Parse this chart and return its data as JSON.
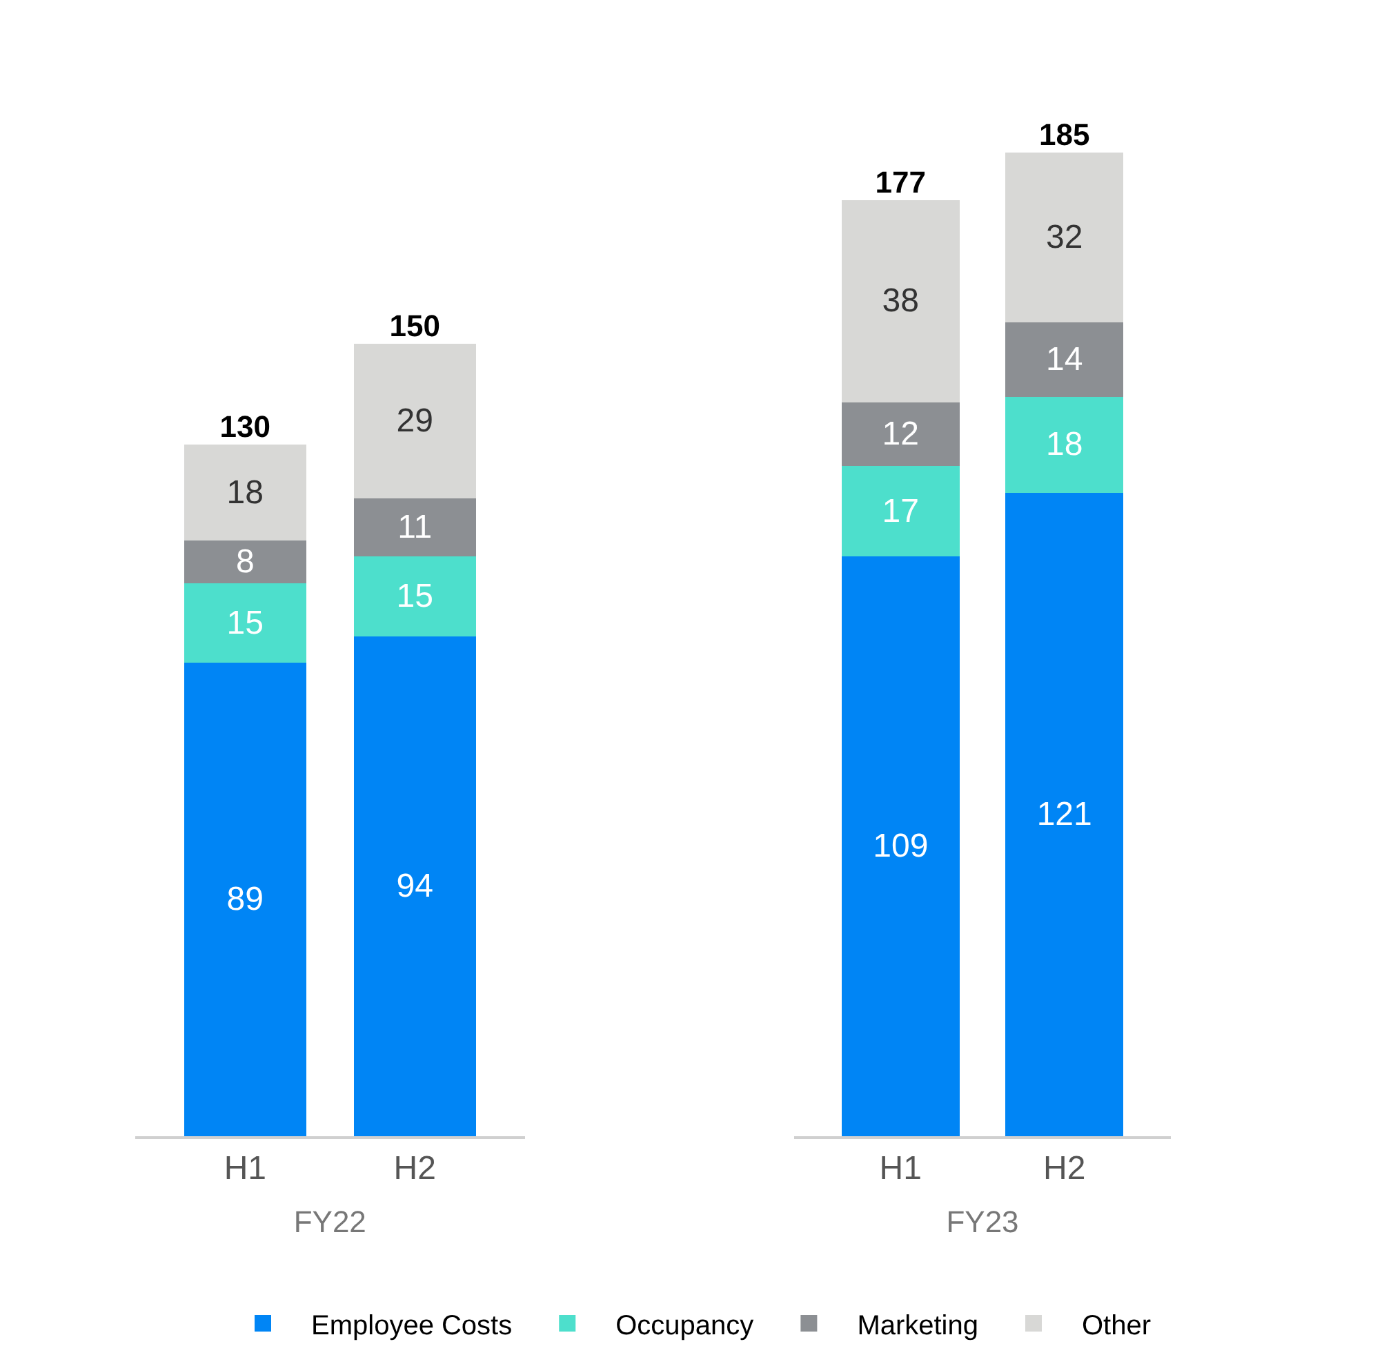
{
  "chart_data": [
    {
      "type": "bar",
      "stacked": true,
      "xlabel": "FY22",
      "categories": [
        "H1",
        "H2"
      ],
      "data_labels": true,
      "legend": "bottom",
      "totals": [
        "130",
        "150"
      ],
      "series": [
        {
          "name": "Employee Costs",
          "color": "#0085f5",
          "values": [
            89,
            94
          ]
        },
        {
          "name": "Occupancy",
          "color": "#4ddfcc",
          "values": [
            15,
            15
          ]
        },
        {
          "name": "Marketing",
          "color": "#8c8f93",
          "values": [
            8,
            11
          ]
        },
        {
          "name": "Other",
          "color": "#d8d8d6",
          "values": [
            18,
            29
          ]
        }
      ]
    },
    {
      "type": "bar",
      "stacked": true,
      "xlabel": "FY23",
      "categories": [
        "H1",
        "H2"
      ],
      "data_labels": true,
      "totals": [
        "177",
        "185"
      ],
      "series": [
        {
          "color": "#0085f5",
          "values": [
            109,
            121
          ]
        },
        {
          "color": "#4ddfcc",
          "values": [
            17,
            18
          ]
        },
        {
          "color": "#8c8f93",
          "values": [
            12,
            14
          ]
        },
        {
          "color": "#d8d8d6",
          "values": [
            38,
            32
          ]
        }
      ]
    }
  ]
}
